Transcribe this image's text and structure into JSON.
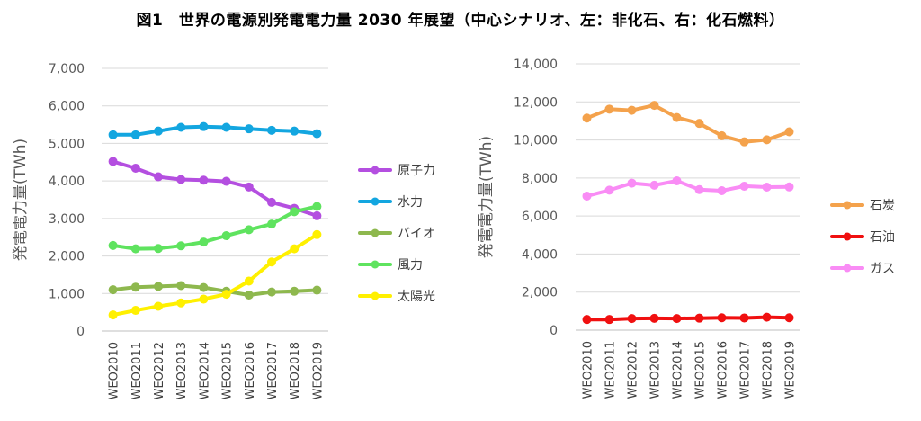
{
  "figure_title": "図1　世界の電源別発電電力量 2030 年展望（中心シナリオ、左：非化石、右：化石燃料）",
  "chart_data": [
    {
      "type": "line",
      "ylabel": "発電電力量(TWh)",
      "ylim": [
        0,
        7000
      ],
      "yticks": [
        0,
        1000,
        2000,
        3000,
        4000,
        5000,
        6000,
        7000
      ],
      "ytick_labels": [
        "0",
        "1,000",
        "2,000",
        "3,000",
        "4,000",
        "5,000",
        "6,000",
        "7,000"
      ],
      "categories": [
        "WEO2010",
        "WEO2011",
        "WEO2012",
        "WEO2013",
        "WEO2014",
        "WEO2015",
        "WEO2016",
        "WEO2017",
        "WEO2018",
        "WEO2019"
      ],
      "legend_position": "right",
      "series": [
        {
          "name": "原子力",
          "color": "#B44FE0",
          "values": [
            4520,
            4340,
            4110,
            4040,
            4020,
            3990,
            3840,
            3430,
            3270,
            3070
          ]
        },
        {
          "name": "水力",
          "color": "#13A6E0",
          "values": [
            5230,
            5230,
            5330,
            5430,
            5450,
            5430,
            5390,
            5350,
            5330,
            5260
          ]
        },
        {
          "name": "バイオ",
          "color": "#8EB84E",
          "values": [
            1100,
            1170,
            1190,
            1210,
            1160,
            1060,
            960,
            1040,
            1060,
            1090
          ]
        },
        {
          "name": "風力",
          "color": "#5FE35F",
          "values": [
            2280,
            2190,
            2200,
            2270,
            2370,
            2540,
            2700,
            2850,
            3180,
            3320
          ]
        },
        {
          "name": "太陽光",
          "color": "#FFF000",
          "values": [
            430,
            550,
            660,
            750,
            850,
            980,
            1330,
            1840,
            2190,
            2570
          ]
        }
      ]
    },
    {
      "type": "line",
      "ylabel": "発電電力量(TWh)",
      "ylim": [
        0,
        14000
      ],
      "yticks": [
        0,
        2000,
        4000,
        6000,
        8000,
        10000,
        12000,
        14000
      ],
      "ytick_labels": [
        "0",
        "2,000",
        "4,000",
        "6,000",
        "8,000",
        "10,000",
        "12,000",
        "14,000"
      ],
      "categories": [
        "WEO2010",
        "WEO2011",
        "WEO2012",
        "WEO2013",
        "WEO2014",
        "WEO2015",
        "WEO2016",
        "WEO2017",
        "WEO2018",
        "WEO2019"
      ],
      "legend_position": "right",
      "series": [
        {
          "name": "石炭",
          "color": "#F4A24C",
          "values": [
            11150,
            11620,
            11560,
            11820,
            11180,
            10870,
            10220,
            9900,
            10010,
            10430
          ]
        },
        {
          "name": "石油",
          "color": "#F01010",
          "values": [
            560,
            560,
            610,
            620,
            610,
            630,
            650,
            640,
            680,
            650
          ]
        },
        {
          "name": "ガス",
          "color": "#F98CF5",
          "values": [
            7050,
            7360,
            7730,
            7620,
            7850,
            7390,
            7330,
            7570,
            7520,
            7530
          ]
        }
      ]
    }
  ]
}
